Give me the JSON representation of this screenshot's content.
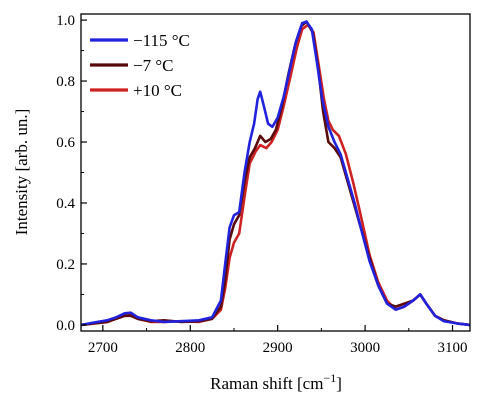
{
  "chart_data": {
    "type": "line",
    "xlabel": "Raman shift [cm",
    "xlabel_sup": "−1",
    "xlabel_end": "]",
    "ylabel": "Intensity [arb. un.]",
    "xlim": [
      2675,
      3120
    ],
    "ylim": [
      -0.02,
      1.02
    ],
    "xticks": [
      2700,
      2800,
      2900,
      3000,
      3100
    ],
    "yticks": [
      0.0,
      0.2,
      0.4,
      0.6,
      0.8,
      1.0
    ],
    "ytick_labels": [
      "0.0",
      "0.2",
      "0.4",
      "0.6",
      "0.8",
      "1.0"
    ],
    "legend_position": "top-left",
    "series": [
      {
        "name": "+10 °C",
        "color": "#cc2222",
        "points": [
          [
            2675,
            0.0
          ],
          [
            2690,
            0.005
          ],
          [
            2705,
            0.01
          ],
          [
            2715,
            0.02
          ],
          [
            2725,
            0.03
          ],
          [
            2732,
            0.032
          ],
          [
            2740,
            0.02
          ],
          [
            2755,
            0.01
          ],
          [
            2770,
            0.01
          ],
          [
            2790,
            0.012
          ],
          [
            2810,
            0.01
          ],
          [
            2825,
            0.02
          ],
          [
            2835,
            0.05
          ],
          [
            2840,
            0.12
          ],
          [
            2845,
            0.22
          ],
          [
            2850,
            0.27
          ],
          [
            2856,
            0.3
          ],
          [
            2862,
            0.42
          ],
          [
            2868,
            0.53
          ],
          [
            2875,
            0.57
          ],
          [
            2880,
            0.59
          ],
          [
            2887,
            0.58
          ],
          [
            2893,
            0.6
          ],
          [
            2900,
            0.64
          ],
          [
            2907,
            0.72
          ],
          [
            2915,
            0.82
          ],
          [
            2922,
            0.91
          ],
          [
            2928,
            0.97
          ],
          [
            2935,
            0.985
          ],
          [
            2941,
            0.96
          ],
          [
            2947,
            0.85
          ],
          [
            2953,
            0.74
          ],
          [
            2958,
            0.67
          ],
          [
            2963,
            0.64
          ],
          [
            2970,
            0.62
          ],
          [
            2978,
            0.56
          ],
          [
            2987,
            0.46
          ],
          [
            2995,
            0.36
          ],
          [
            3005,
            0.23
          ],
          [
            3015,
            0.14
          ],
          [
            3025,
            0.08
          ],
          [
            3035,
            0.05
          ],
          [
            3045,
            0.06
          ],
          [
            3055,
            0.08
          ],
          [
            3063,
            0.1
          ],
          [
            3070,
            0.07
          ],
          [
            3080,
            0.03
          ],
          [
            3090,
            0.015
          ],
          [
            3105,
            0.005
          ],
          [
            3120,
            0.0
          ]
        ]
      },
      {
        "name": "−7 °C",
        "color": "#5a0a0a",
        "points": [
          [
            2675,
            0.0
          ],
          [
            2690,
            0.005
          ],
          [
            2705,
            0.01
          ],
          [
            2715,
            0.02
          ],
          [
            2725,
            0.03
          ],
          [
            2732,
            0.03
          ],
          [
            2740,
            0.02
          ],
          [
            2755,
            0.012
          ],
          [
            2770,
            0.015
          ],
          [
            2790,
            0.01
          ],
          [
            2810,
            0.012
          ],
          [
            2825,
            0.02
          ],
          [
            2835,
            0.06
          ],
          [
            2840,
            0.15
          ],
          [
            2845,
            0.28
          ],
          [
            2850,
            0.33
          ],
          [
            2856,
            0.36
          ],
          [
            2862,
            0.47
          ],
          [
            2868,
            0.55
          ],
          [
            2874,
            0.58
          ],
          [
            2880,
            0.62
          ],
          [
            2886,
            0.6
          ],
          [
            2892,
            0.61
          ],
          [
            2898,
            0.64
          ],
          [
            2905,
            0.72
          ],
          [
            2912,
            0.82
          ],
          [
            2920,
            0.92
          ],
          [
            2927,
            0.98
          ],
          [
            2933,
            0.995
          ],
          [
            2940,
            0.96
          ],
          [
            2946,
            0.85
          ],
          [
            2952,
            0.7
          ],
          [
            2958,
            0.6
          ],
          [
            2965,
            0.58
          ],
          [
            2972,
            0.55
          ],
          [
            2980,
            0.47
          ],
          [
            2988,
            0.39
          ],
          [
            2995,
            0.32
          ],
          [
            3005,
            0.22
          ],
          [
            3015,
            0.13
          ],
          [
            3025,
            0.07
          ],
          [
            3035,
            0.06
          ],
          [
            3045,
            0.07
          ],
          [
            3055,
            0.08
          ],
          [
            3063,
            0.1
          ],
          [
            3070,
            0.07
          ],
          [
            3080,
            0.03
          ],
          [
            3090,
            0.015
          ],
          [
            3105,
            0.005
          ],
          [
            3120,
            0.0
          ]
        ]
      },
      {
        "name": "−115 °C",
        "color": "#2222dd",
        "points": [
          [
            2675,
            0.0
          ],
          [
            2690,
            0.008
          ],
          [
            2705,
            0.015
          ],
          [
            2715,
            0.025
          ],
          [
            2725,
            0.038
          ],
          [
            2732,
            0.04
          ],
          [
            2740,
            0.025
          ],
          [
            2755,
            0.015
          ],
          [
            2770,
            0.01
          ],
          [
            2790,
            0.012
          ],
          [
            2810,
            0.015
          ],
          [
            2825,
            0.025
          ],
          [
            2835,
            0.08
          ],
          [
            2840,
            0.2
          ],
          [
            2845,
            0.32
          ],
          [
            2850,
            0.36
          ],
          [
            2856,
            0.37
          ],
          [
            2862,
            0.5
          ],
          [
            2868,
            0.6
          ],
          [
            2873,
            0.66
          ],
          [
            2877,
            0.74
          ],
          [
            2880,
            0.765
          ],
          [
            2884,
            0.72
          ],
          [
            2889,
            0.66
          ],
          [
            2894,
            0.65
          ],
          [
            2900,
            0.68
          ],
          [
            2907,
            0.75
          ],
          [
            2914,
            0.84
          ],
          [
            2921,
            0.93
          ],
          [
            2928,
            0.99
          ],
          [
            2933,
            0.995
          ],
          [
            2939,
            0.97
          ],
          [
            2945,
            0.86
          ],
          [
            2951,
            0.74
          ],
          [
            2958,
            0.65
          ],
          [
            2965,
            0.6
          ],
          [
            2972,
            0.56
          ],
          [
            2980,
            0.48
          ],
          [
            2988,
            0.4
          ],
          [
            2995,
            0.32
          ],
          [
            3005,
            0.21
          ],
          [
            3015,
            0.13
          ],
          [
            3025,
            0.07
          ],
          [
            3035,
            0.05
          ],
          [
            3045,
            0.06
          ],
          [
            3055,
            0.08
          ],
          [
            3063,
            0.1
          ],
          [
            3070,
            0.07
          ],
          [
            3080,
            0.03
          ],
          [
            3090,
            0.012
          ],
          [
            3105,
            0.005
          ],
          [
            3120,
            0.0
          ]
        ]
      }
    ],
    "legend_order": [
      "−115 °C",
      "−7 °C",
      "+10 °C"
    ]
  }
}
